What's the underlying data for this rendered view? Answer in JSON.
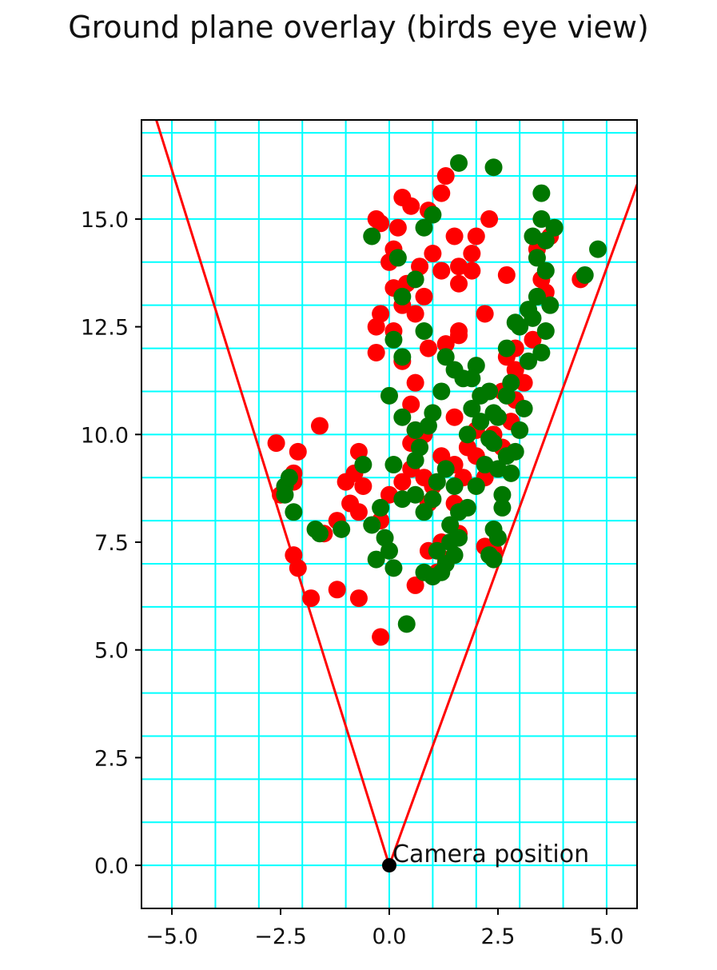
{
  "chart_data": {
    "type": "scatter",
    "title": "Ground plane overlay (birds eye view)",
    "xlabel": "",
    "ylabel": "",
    "xlim": [
      -5.7,
      5.7
    ],
    "ylim": [
      -1.0,
      17.3
    ],
    "aspect": "equal",
    "x_ticks": [
      -5.0,
      -2.5,
      0.0,
      2.5,
      5.0
    ],
    "x_tick_labels": [
      "−5.0",
      "−2.5",
      "0.0",
      "2.5",
      "5.0"
    ],
    "y_ticks": [
      0.0,
      2.5,
      5.0,
      7.5,
      10.0,
      12.5,
      15.0
    ],
    "y_tick_labels": [
      "0.0",
      "2.5",
      "5.0",
      "7.5",
      "10.0",
      "12.5",
      "15.0"
    ],
    "grid": {
      "on": true,
      "spacing": 1.0,
      "color": "#00ffff"
    },
    "camera": {
      "x": 0.0,
      "y": 0.0,
      "label": "Camera position",
      "color": "#000000"
    },
    "fov_lines": {
      "color": "#ff0000",
      "lines": [
        {
          "from": [
            0.0,
            0.0
          ],
          "to": [
            -5.7,
            18.4
          ]
        },
        {
          "from": [
            0.0,
            0.0
          ],
          "to": [
            5.7,
            15.8
          ]
        }
      ]
    },
    "series": [
      {
        "color": "#ff0000",
        "points": [
          [
            -2.6,
            9.8
          ],
          [
            -2.2,
            9.1
          ],
          [
            -2.1,
            9.6
          ],
          [
            -2.5,
            8.6
          ],
          [
            -2.2,
            8.9
          ],
          [
            -1.6,
            10.2
          ],
          [
            -2.2,
            7.2
          ],
          [
            -2.1,
            6.9
          ],
          [
            -1.8,
            6.2
          ],
          [
            -1.5,
            7.7
          ],
          [
            -1.2,
            6.4
          ],
          [
            -1.2,
            8.0
          ],
          [
            -1.0,
            8.9
          ],
          [
            -0.9,
            8.4
          ],
          [
            -0.7,
            9.6
          ],
          [
            -0.8,
            9.1
          ],
          [
            -0.7,
            8.2
          ],
          [
            -0.6,
            8.8
          ],
          [
            -0.7,
            6.2
          ],
          [
            -0.2,
            5.3
          ],
          [
            -0.2,
            8.0
          ],
          [
            0.0,
            8.6
          ],
          [
            0.3,
            8.9
          ],
          [
            0.6,
            6.5
          ],
          [
            0.5,
            9.2
          ],
          [
            0.8,
            9.0
          ],
          [
            0.9,
            8.4
          ],
          [
            1.0,
            8.8
          ],
          [
            0.5,
            9.8
          ],
          [
            0.6,
            10.1
          ],
          [
            0.8,
            10.0
          ],
          [
            1.2,
            9.5
          ],
          [
            1.5,
            9.3
          ],
          [
            1.7,
            9.0
          ],
          [
            1.5,
            8.4
          ],
          [
            1.2,
            7.5
          ],
          [
            1.3,
            7.1
          ],
          [
            0.9,
            7.3
          ],
          [
            2.0,
            9.5
          ],
          [
            2.2,
            9.0
          ],
          [
            2.4,
            7.3
          ],
          [
            2.2,
            7.4
          ],
          [
            1.6,
            7.7
          ],
          [
            1.1,
            6.8
          ],
          [
            0.5,
            10.7
          ],
          [
            0.3,
            11.7
          ],
          [
            -0.3,
            11.9
          ],
          [
            -0.3,
            12.5
          ],
          [
            -0.2,
            12.8
          ],
          [
            0.1,
            12.4
          ],
          [
            0.3,
            13.0
          ],
          [
            0.6,
            12.8
          ],
          [
            0.1,
            13.4
          ],
          [
            0.0,
            14.0
          ],
          [
            0.1,
            14.3
          ],
          [
            0.2,
            14.8
          ],
          [
            -0.3,
            15.0
          ],
          [
            0.3,
            15.5
          ],
          [
            0.5,
            15.3
          ],
          [
            0.9,
            15.2
          ],
          [
            1.2,
            15.6
          ],
          [
            1.3,
            16.0
          ],
          [
            1.5,
            14.6
          ],
          [
            1.0,
            14.2
          ],
          [
            1.2,
            13.8
          ],
          [
            1.6,
            13.9
          ],
          [
            1.9,
            14.2
          ],
          [
            2.0,
            14.6
          ],
          [
            2.3,
            15.0
          ],
          [
            2.2,
            12.8
          ],
          [
            1.6,
            12.4
          ],
          [
            1.3,
            12.1
          ],
          [
            1.6,
            12.3
          ],
          [
            1.9,
            13.8
          ],
          [
            2.7,
            13.7
          ],
          [
            2.7,
            11.8
          ],
          [
            2.9,
            11.5
          ],
          [
            3.1,
            11.2
          ],
          [
            2.9,
            10.8
          ],
          [
            2.8,
            10.3
          ],
          [
            2.4,
            10.0
          ],
          [
            2.6,
            9.7
          ],
          [
            2.9,
            12.0
          ],
          [
            3.3,
            12.2
          ],
          [
            3.6,
            13.3
          ],
          [
            3.5,
            13.6
          ],
          [
            3.4,
            14.3
          ],
          [
            3.7,
            14.6
          ],
          [
            4.4,
            13.6
          ],
          [
            0.7,
            13.9
          ],
          [
            0.4,
            13.5
          ],
          [
            0.8,
            13.2
          ],
          [
            1.6,
            13.5
          ],
          [
            -0.2,
            14.9
          ],
          [
            0.6,
            11.2
          ],
          [
            0.9,
            12.0
          ],
          [
            1.5,
            10.4
          ],
          [
            2.0,
            10.1
          ],
          [
            1.8,
            9.7
          ],
          [
            2.6,
            11.0
          ]
        ]
      },
      {
        "color": "#007700",
        "points": [
          [
            -2.4,
            8.8
          ],
          [
            -2.4,
            8.6
          ],
          [
            -2.3,
            9.0
          ],
          [
            -2.2,
            8.2
          ],
          [
            -1.7,
            7.8
          ],
          [
            -1.6,
            7.7
          ],
          [
            -1.1,
            7.8
          ],
          [
            -0.6,
            9.3
          ],
          [
            -0.4,
            7.9
          ],
          [
            -0.3,
            7.1
          ],
          [
            -0.1,
            7.6
          ],
          [
            0.0,
            7.3
          ],
          [
            0.1,
            6.9
          ],
          [
            0.4,
            5.6
          ],
          [
            -0.2,
            8.3
          ],
          [
            0.1,
            9.3
          ],
          [
            0.3,
            8.5
          ],
          [
            0.6,
            8.6
          ],
          [
            0.8,
            8.2
          ],
          [
            1.0,
            8.5
          ],
          [
            1.1,
            8.9
          ],
          [
            1.3,
            9.2
          ],
          [
            1.5,
            8.8
          ],
          [
            1.6,
            8.2
          ],
          [
            1.4,
            7.9
          ],
          [
            1.4,
            7.5
          ],
          [
            1.3,
            7.0
          ],
          [
            1.2,
            6.8
          ],
          [
            1.5,
            7.2
          ],
          [
            1.6,
            7.6
          ],
          [
            1.8,
            8.3
          ],
          [
            2.0,
            8.8
          ],
          [
            2.2,
            9.3
          ],
          [
            2.4,
            9.8
          ],
          [
            2.5,
            10.4
          ],
          [
            2.7,
            10.9
          ],
          [
            2.8,
            11.2
          ],
          [
            2.6,
            8.6
          ],
          [
            2.6,
            8.3
          ],
          [
            2.8,
            9.1
          ],
          [
            2.9,
            9.6
          ],
          [
            3.0,
            10.1
          ],
          [
            3.1,
            10.6
          ],
          [
            2.4,
            7.8
          ],
          [
            2.5,
            7.6
          ],
          [
            2.3,
            7.2
          ],
          [
            2.4,
            7.1
          ],
          [
            0.0,
            10.9
          ],
          [
            0.3,
            10.4
          ],
          [
            0.6,
            10.1
          ],
          [
            1.0,
            10.5
          ],
          [
            1.2,
            11.0
          ],
          [
            1.5,
            11.5
          ],
          [
            1.7,
            11.3
          ],
          [
            2.0,
            11.6
          ],
          [
            2.3,
            11.0
          ],
          [
            2.4,
            10.5
          ],
          [
            2.7,
            12.0
          ],
          [
            3.0,
            12.5
          ],
          [
            3.2,
            12.9
          ],
          [
            3.4,
            13.2
          ],
          [
            3.6,
            12.4
          ],
          [
            3.5,
            11.9
          ],
          [
            3.2,
            11.7
          ],
          [
            3.4,
            14.1
          ],
          [
            3.6,
            14.5
          ],
          [
            3.8,
            14.8
          ],
          [
            3.5,
            15.6
          ],
          [
            3.5,
            15.0
          ],
          [
            3.3,
            14.6
          ],
          [
            2.4,
            16.2
          ],
          [
            1.6,
            16.3
          ],
          [
            1.0,
            15.1
          ],
          [
            0.8,
            14.8
          ],
          [
            0.6,
            13.6
          ],
          [
            0.3,
            13.2
          ],
          [
            0.1,
            12.2
          ],
          [
            0.3,
            11.8
          ],
          [
            0.8,
            12.4
          ],
          [
            1.3,
            11.8
          ],
          [
            0.6,
            9.4
          ],
          [
            0.7,
            9.7
          ],
          [
            0.9,
            10.2
          ],
          [
            1.8,
            10.0
          ],
          [
            2.1,
            10.3
          ],
          [
            2.3,
            9.9
          ],
          [
            2.5,
            9.2
          ],
          [
            2.7,
            9.5
          ],
          [
            4.8,
            14.3
          ],
          [
            4.5,
            13.7
          ],
          [
            -0.4,
            14.6
          ],
          [
            0.2,
            14.1
          ],
          [
            3.6,
            13.8
          ],
          [
            3.7,
            13.0
          ],
          [
            3.3,
            12.7
          ],
          [
            2.9,
            12.6
          ],
          [
            1.1,
            7.3
          ],
          [
            0.8,
            6.8
          ],
          [
            1.0,
            6.7
          ],
          [
            1.9,
            10.6
          ],
          [
            2.1,
            10.9
          ],
          [
            1.9,
            11.3
          ]
        ]
      }
    ]
  }
}
